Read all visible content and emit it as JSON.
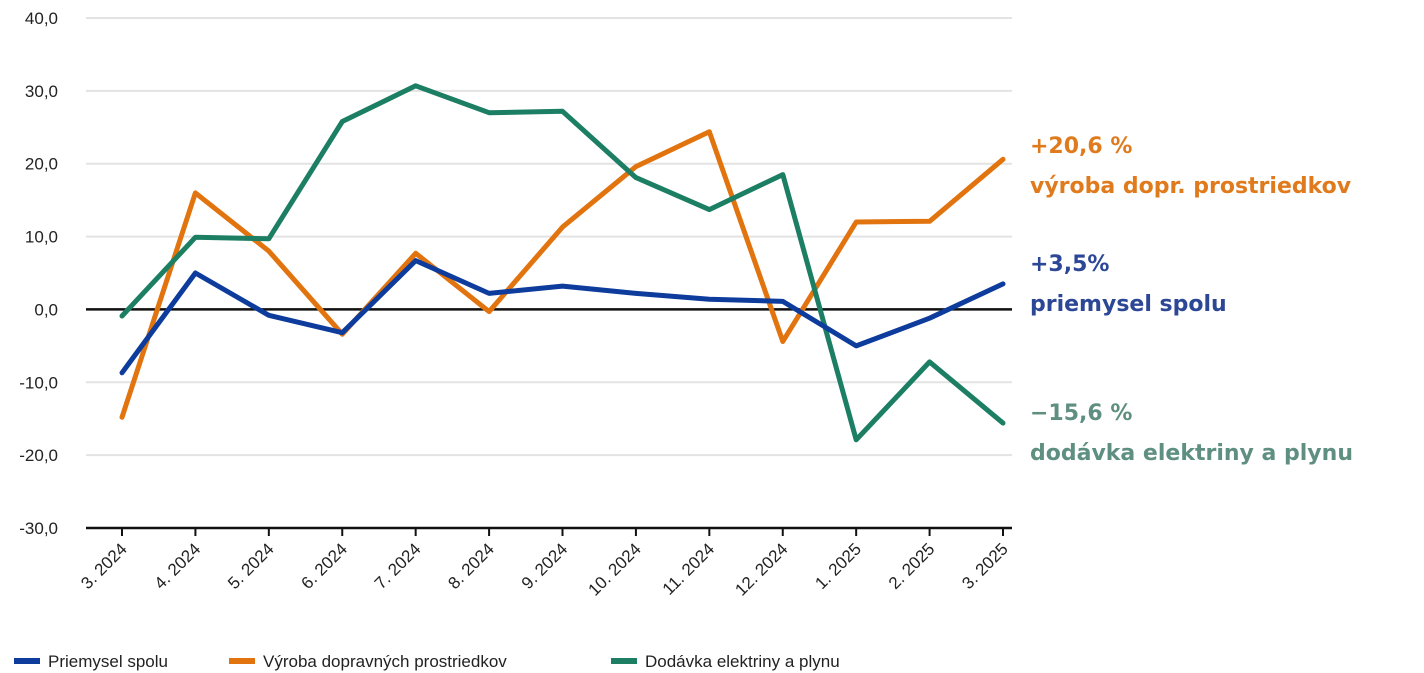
{
  "chart_data": {
    "type": "line",
    "categories": [
      "3. 2024",
      "4. 2024",
      "5. 2024",
      "6. 2024",
      "7. 2024",
      "8. 2024",
      "9. 2024",
      "10. 2024",
      "11. 2024",
      "12. 2024",
      "1. 2025",
      "2. 2025",
      "3. 2025"
    ],
    "ylim": [
      -30,
      40
    ],
    "yticks": [
      "40,0",
      "30,0",
      "20,0",
      "10,0",
      "0,0",
      "-10,0",
      "-20,0",
      "-30,0"
    ],
    "grid": true,
    "legend_position": "bottom-left",
    "series": [
      {
        "name": "Priemysel spolu",
        "color": "#0d3c9c",
        "values": [
          -8.7,
          5.0,
          -0.8,
          -3.2,
          6.7,
          2.2,
          3.2,
          2.2,
          1.4,
          1.1,
          -5.0,
          -1.2,
          3.5
        ]
      },
      {
        "name": "Výroba dopravných prostriedkov",
        "color": "#e2740f",
        "values": [
          -14.8,
          16.0,
          8.0,
          -3.4,
          7.7,
          -0.3,
          11.3,
          19.6,
          24.4,
          -4.4,
          12.0,
          12.1,
          20.6
        ]
      },
      {
        "name": "Dodávka elektriny a plynu",
        "color": "#1c7e63",
        "values": [
          -0.9,
          9.9,
          9.7,
          25.8,
          30.7,
          27.0,
          27.2,
          18.1,
          13.7,
          18.5,
          -17.9,
          -7.2,
          -15.6
        ]
      }
    ],
    "annotations": [
      {
        "value": "+20,6 %",
        "label": "výroba dopr. prostriedkov",
        "color": "#e07b1d"
      },
      {
        "value": "+3,5%",
        "label": "priemysel spolu",
        "color": "#2b4796"
      },
      {
        "value": "−15,6 %",
        "label": "dodávka elektriny a plynu",
        "color": "#5e8f80"
      }
    ]
  }
}
